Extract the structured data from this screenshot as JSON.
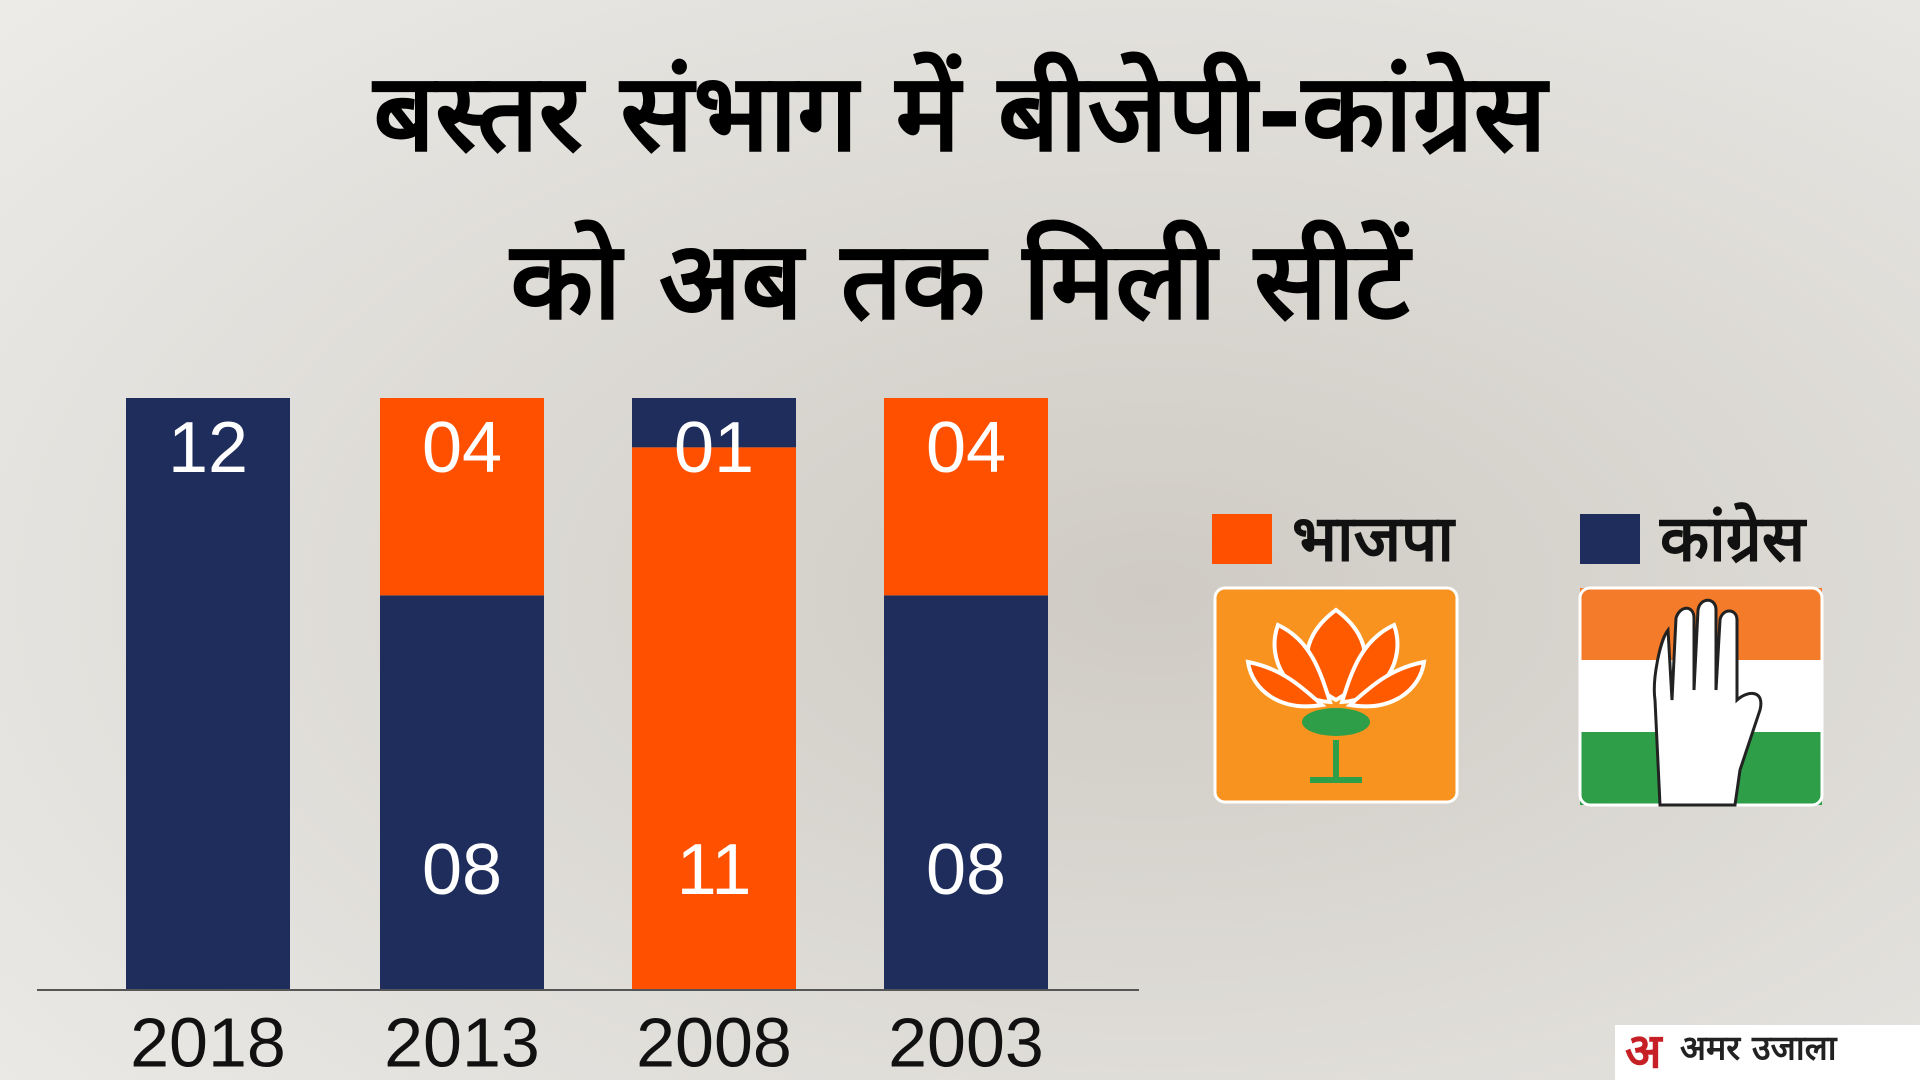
{
  "chart_data": {
    "type": "stacked_bar",
    "title": "बस्तर संभाग में बीजेपी-कांग्रेस को अब तक मिली सीटें",
    "categories": [
      "2018",
      "2013",
      "2008",
      "2003"
    ],
    "series": [
      {
        "name": "भाजपा",
        "color": "#ff5000",
        "values": [
          0,
          4,
          11,
          4
        ],
        "value_labels": [
          null,
          "04",
          "11",
          "04"
        ]
      },
      {
        "name": "कांग्रेस",
        "color": "#1f2d5c",
        "values": [
          12,
          8,
          1,
          8
        ],
        "value_labels": [
          "12",
          "08",
          "01",
          "08"
        ]
      }
    ]
  },
  "watermark": "अमर उजाला"
}
